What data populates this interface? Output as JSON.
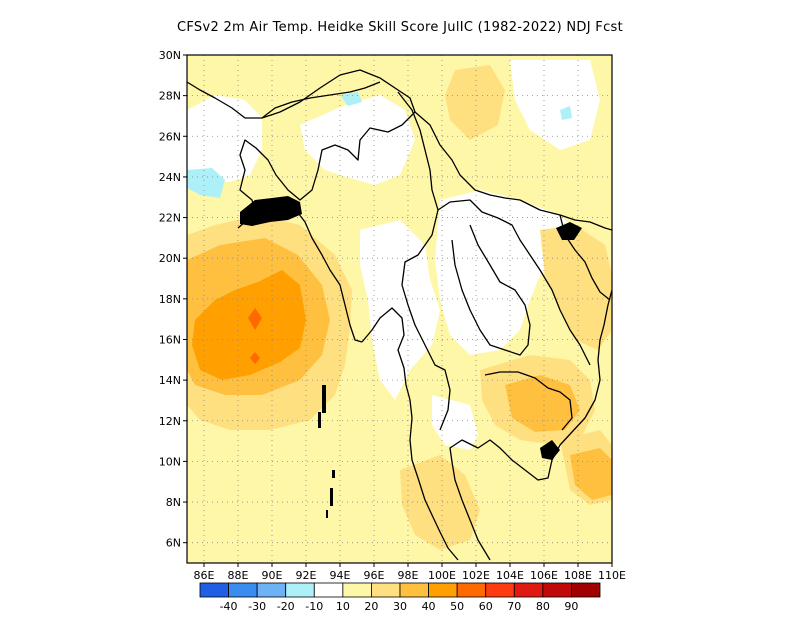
{
  "title": "CFSv2  2m Air Temp. Heidke Skill Score JulIC (1982-2022) NDJ Fcst",
  "map": {
    "lon_range": [
      85,
      110
    ],
    "lat_range": [
      5,
      30
    ],
    "lat_ticks": [
      "6N",
      "8N",
      "10N",
      "12N",
      "14N",
      "16N",
      "18N",
      "20N",
      "22N",
      "24N",
      "26N",
      "28N",
      "30N"
    ],
    "lat_tick_values": [
      6,
      8,
      10,
      12,
      14,
      16,
      18,
      20,
      22,
      24,
      26,
      28,
      30
    ],
    "lon_ticks": [
      "86E",
      "88E",
      "90E",
      "92E",
      "94E",
      "96E",
      "98E",
      "100E",
      "102E",
      "104E",
      "106E",
      "108E",
      "110E"
    ],
    "lon_tick_values": [
      86,
      88,
      90,
      92,
      94,
      96,
      98,
      100,
      102,
      104,
      106,
      108,
      110
    ],
    "gridlines": "dotted",
    "field_regions": [
      {
        "level": "10-20",
        "color": "#fff7a8",
        "desc": "broad weak positive skill"
      },
      {
        "level": "20-30",
        "color": "#ffe080",
        "desc": "moderate positive skill"
      },
      {
        "level": "30-40",
        "color": "#ffc040",
        "desc": "Bay of Bengal core"
      },
      {
        "level": "40-50",
        "color": "#ffa000",
        "desc": "central Bay of Bengal"
      },
      {
        "level": "50-60",
        "color": "#ff6a00",
        "desc": "small maxima near 89E 16-17N"
      },
      {
        "level": "-20--10",
        "color": "#aef0f8",
        "desc": "small negative patches"
      }
    ]
  },
  "colorbar": {
    "labels": [
      "-40",
      "-30",
      "-20",
      "-10",
      "10",
      "20",
      "30",
      "40",
      "50",
      "60",
      "70",
      "80",
      "90"
    ],
    "colors": [
      "#1f5fe6",
      "#3a8cf0",
      "#6cb2f5",
      "#aef0f8",
      "#ffffff",
      "#fff7a8",
      "#ffe080",
      "#ffc040",
      "#ffa000",
      "#ff6a00",
      "#ff3c10",
      "#e01a10",
      "#c00a0a",
      "#a00000"
    ]
  }
}
